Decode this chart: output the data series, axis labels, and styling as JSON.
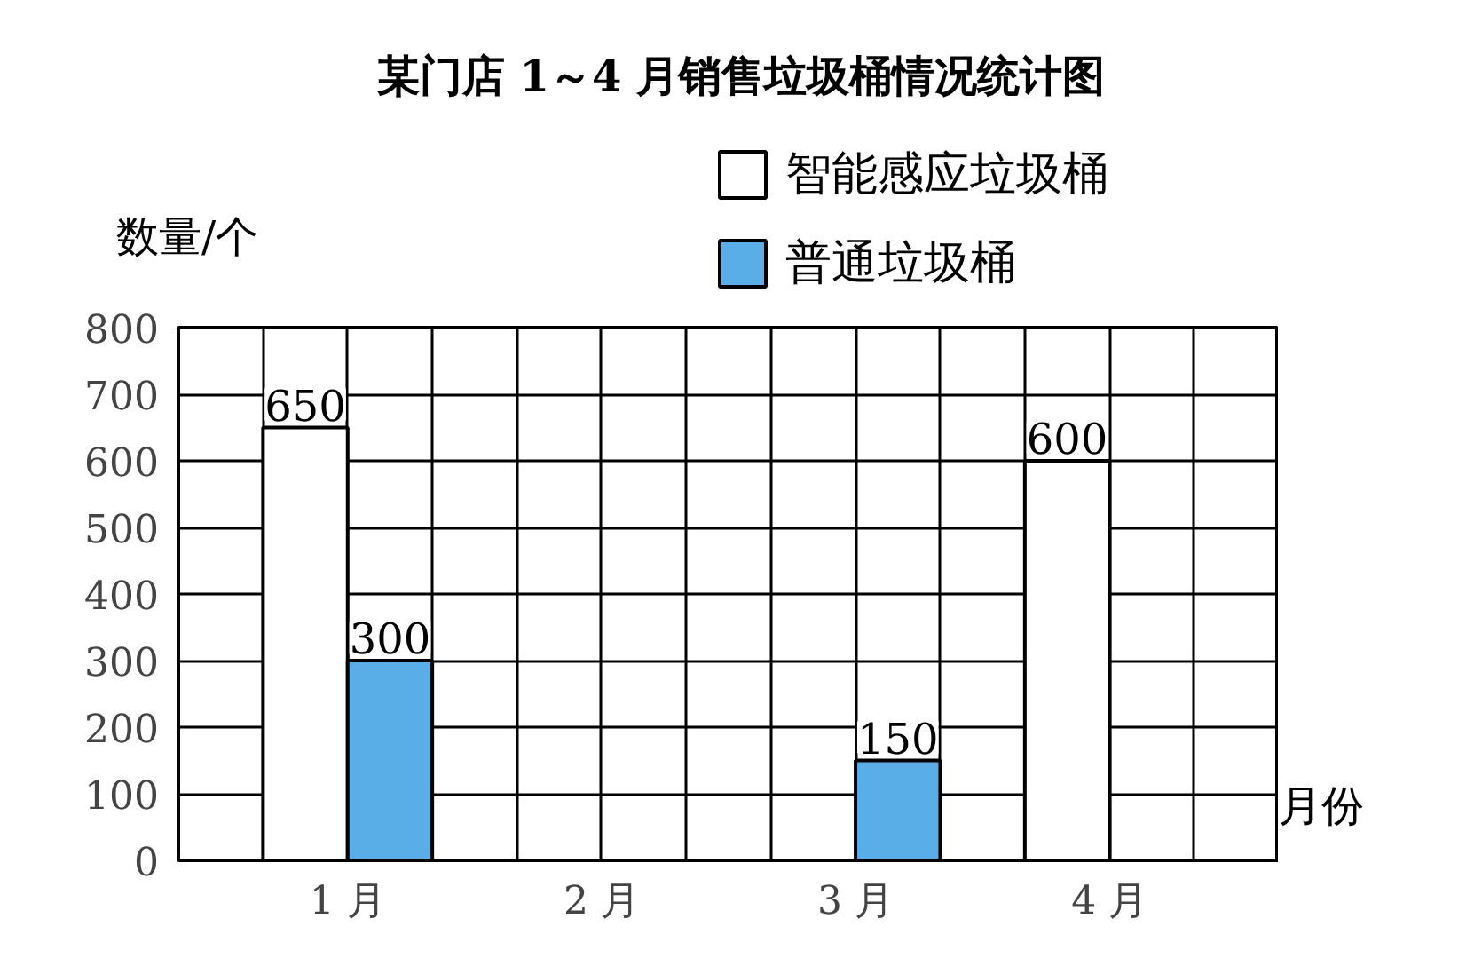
{
  "chart_data": {
    "type": "bar",
    "title": "某门店 1～4 月销售垃圾桶情况统计图",
    "xlabel": "月份",
    "ylabel": "数量/个",
    "categories": [
      "1 月",
      "2 月",
      "3 月",
      "4 月"
    ],
    "series": [
      {
        "name": "智能感应垃圾桶",
        "color": "#ffffff",
        "values": [
          650,
          null,
          null,
          600
        ]
      },
      {
        "name": "普通垃圾桶",
        "color": "#5aaee8",
        "values": [
          300,
          null,
          150,
          null
        ]
      }
    ],
    "ylim": [
      0,
      800
    ],
    "yticks": [
      0,
      100,
      200,
      300,
      400,
      500,
      600,
      700,
      800
    ],
    "grid": true,
    "legend": "top right",
    "data_labels": true
  }
}
